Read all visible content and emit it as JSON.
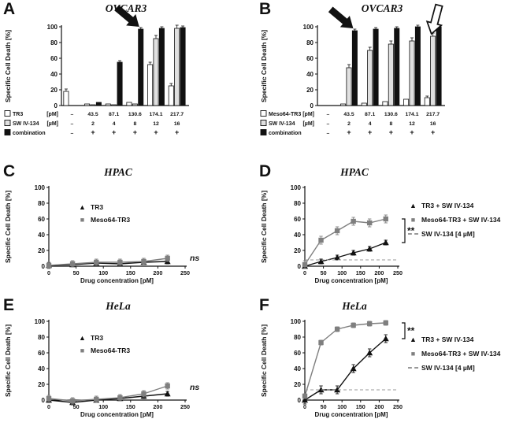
{
  "panels": [
    {
      "letter": "A",
      "title": "OVCAR3"
    },
    {
      "letter": "B",
      "title": "OVCAR3"
    },
    {
      "letter": "C",
      "title": "HPAC"
    },
    {
      "letter": "D",
      "title": "HPAC"
    },
    {
      "letter": "E",
      "title": "HeLa"
    },
    {
      "letter": "F",
      "title": "HeLa"
    }
  ],
  "colors": {
    "black": "#111111",
    "gray_series": "#7f7f7f",
    "light_bar": "#e0e0e0",
    "dashed_line": "#999999"
  },
  "chart_data": [
    {
      "panel": "A",
      "type": "bar",
      "title": "OVCAR3",
      "ylabel": "Specific Cell Death [%]",
      "ylim": [
        0,
        100
      ],
      "yticks": [
        0,
        20,
        40,
        60,
        80,
        100
      ],
      "dose_rows": [
        {
          "name": "TR3",
          "unit": "[pM]",
          "swatch": "#ffffff",
          "values": [
            "–",
            "43.5",
            "87.1",
            "130.6",
            "174.1",
            "217.7"
          ]
        },
        {
          "name": "SW IV-134",
          "unit": "[µM]",
          "swatch": "#e0e0e0",
          "values": [
            "–",
            "2",
            "4",
            "8",
            "12",
            "16"
          ]
        },
        {
          "name": "combination",
          "unit": "",
          "swatch": "#111111",
          "values": [
            "–",
            "+",
            "+",
            "+",
            "+",
            "+"
          ]
        }
      ],
      "series": [
        {
          "name": "TR3",
          "fill": "#ffffff",
          "values": [
            18,
            2,
            2,
            4,
            52,
            25
          ],
          "error": 3
        },
        {
          "name": "SW IV-134",
          "fill": "#e0e0e0",
          "values": [
            0,
            1,
            1,
            2,
            85,
            98
          ],
          "error": 4
        },
        {
          "name": "combination",
          "fill": "#111111",
          "values": [
            0,
            4,
            55,
            97,
            98,
            99
          ],
          "error": 2
        }
      ],
      "annotations": [
        {
          "type": "arrow",
          "fill": "black",
          "group": 3,
          "series": 2,
          "angle": 40
        }
      ]
    },
    {
      "panel": "B",
      "type": "bar",
      "title": "OVCAR3",
      "ylabel": "Specific Cell Death [%]",
      "ylim": [
        0,
        100
      ],
      "yticks": [
        0,
        20,
        40,
        60,
        80,
        100
      ],
      "dose_rows": [
        {
          "name": "Meso64-TR3",
          "unit": "[pM]",
          "swatch": "#ffffff",
          "values": [
            "–",
            "43.5",
            "87.1",
            "130.6",
            "174.1",
            "217.7"
          ]
        },
        {
          "name": "SW IV-134",
          "unit": "[µM]",
          "swatch": "#e0e0e0",
          "values": [
            "–",
            "2",
            "4",
            "8",
            "12",
            "16"
          ]
        },
        {
          "name": "combination",
          "unit": "",
          "swatch": "#111111",
          "values": [
            "–",
            "+",
            "+",
            "+",
            "+",
            "+"
          ]
        }
      ],
      "series": [
        {
          "name": "Meso64-TR3",
          "fill": "#ffffff",
          "values": [
            0,
            2,
            3,
            5,
            8,
            10
          ],
          "error": 2
        },
        {
          "name": "SW IV-134",
          "fill": "#e0e0e0",
          "values": [
            0,
            48,
            70,
            78,
            82,
            88
          ],
          "error": 4
        },
        {
          "name": "combination",
          "fill": "#111111",
          "values": [
            0,
            95,
            97,
            98,
            100,
            100
          ],
          "error": 2
        }
      ],
      "annotations": [
        {
          "type": "arrow",
          "fill": "black",
          "group": 1,
          "series": 2,
          "angle": 40
        },
        {
          "type": "arrow",
          "fill": "white",
          "group": 5,
          "series": 1,
          "angle": 105
        }
      ]
    },
    {
      "panel": "C",
      "type": "line",
      "title": "HPAC",
      "ylabel": "Specific Cell Death [%]",
      "xlabel": "Drug concentration [pM]",
      "ylim": [
        0,
        100
      ],
      "yticks": [
        0,
        20,
        40,
        60,
        80,
        100
      ],
      "xlim": [
        0,
        250
      ],
      "xticks": [
        0,
        50,
        100,
        150,
        200,
        250
      ],
      "x": [
        0,
        43.5,
        87.1,
        130.6,
        174.1,
        217.7
      ],
      "series": [
        {
          "name": "TR3",
          "marker": "triangle",
          "color": "#111111",
          "values": [
            1,
            2,
            4,
            3,
            5,
            6
          ],
          "error": 3
        },
        {
          "name": "Meso64-TR3",
          "marker": "square",
          "color": "#7f7f7f",
          "values": [
            1,
            3,
            5,
            5,
            6,
            10
          ],
          "error": 4
        }
      ],
      "annotations": [
        {
          "type": "text",
          "label": "ns",
          "y": 10
        }
      ],
      "legend": {
        "position": "inside",
        "items": [
          {
            "label": "TR3",
            "marker": "triangle",
            "color": "#111111"
          },
          {
            "label": "Meso64-TR3",
            "marker": "square",
            "color": "#7f7f7f"
          }
        ]
      }
    },
    {
      "panel": "D",
      "type": "line",
      "title": "HPAC",
      "ylabel": "Specific Cell Death [%]",
      "xlabel": "Drug concentration [pM]",
      "ylim": [
        0,
        100
      ],
      "yticks": [
        0,
        20,
        40,
        60,
        80,
        100
      ],
      "xlim": [
        0,
        250
      ],
      "xticks": [
        0,
        50,
        100,
        150,
        200,
        250
      ],
      "x": [
        0,
        43.5,
        87.1,
        130.6,
        174.1,
        217.7
      ],
      "series": [
        {
          "name": "TR3 + SW IV-134",
          "marker": "triangle",
          "color": "#111111",
          "values": [
            0,
            6,
            11,
            17,
            22,
            30
          ],
          "error": 3
        },
        {
          "name": "Meso64-TR3 + SW IV-134",
          "marker": "square",
          "color": "#7f7f7f",
          "values": [
            2,
            33,
            45,
            57,
            55,
            60
          ],
          "error": 5
        },
        {
          "name": "SW IV-134 [4 µM]",
          "style": "dashed_flat",
          "color": "#999999",
          "value": 8
        }
      ],
      "annotations": [
        {
          "type": "sig",
          "label": "**"
        }
      ],
      "legend": {
        "position": "right",
        "items": [
          {
            "label": "TR3 + SW IV-134",
            "marker": "triangle",
            "color": "#111111"
          },
          {
            "label": "Meso64-TR3 + SW IV-134",
            "marker": "square",
            "color": "#7f7f7f"
          },
          {
            "label": "SW IV-134 [4 µM]",
            "marker": "dash",
            "color": "#999999"
          }
        ]
      }
    },
    {
      "panel": "E",
      "type": "line",
      "title": "HeLa",
      "ylabel": "Specific Cell Death [%]",
      "xlabel": "Drug concentration [pM]",
      "ylim": [
        0,
        100
      ],
      "yticks": [
        0,
        20,
        40,
        60,
        80,
        100
      ],
      "xlim": [
        0,
        250
      ],
      "xticks": [
        0,
        50,
        100,
        150,
        200,
        250
      ],
      "x": [
        0,
        43.5,
        87.1,
        130.6,
        174.1,
        217.7
      ],
      "series": [
        {
          "name": "TR3",
          "marker": "triangle",
          "color": "#111111",
          "values": [
            0,
            -3,
            0,
            2,
            5,
            8
          ],
          "error": 3
        },
        {
          "name": "Meso64-TR3",
          "marker": "square",
          "color": "#7f7f7f",
          "values": [
            2,
            -1,
            1,
            3,
            8,
            18
          ],
          "error": 4
        }
      ],
      "annotations": [
        {
          "type": "text",
          "label": "ns",
          "y": 16
        }
      ],
      "legend": {
        "position": "inside",
        "items": [
          {
            "label": "TR3",
            "marker": "triangle",
            "color": "#111111"
          },
          {
            "label": "Meso64-TR3",
            "marker": "square",
            "color": "#7f7f7f"
          }
        ]
      }
    },
    {
      "panel": "F",
      "type": "line",
      "title": "HeLa",
      "ylabel": "Specific Cell Death [%]",
      "xlabel": "Drug concentration [pM]",
      "ylim": [
        0,
        100
      ],
      "yticks": [
        0,
        20,
        40,
        60,
        80,
        100
      ],
      "xlim": [
        0,
        250
      ],
      "xticks": [
        0,
        50,
        100,
        150,
        200,
        250
      ],
      "x": [
        0,
        43.5,
        87.1,
        130.6,
        174.1,
        217.7
      ],
      "series": [
        {
          "name": "TR3 + SW IV-134",
          "marker": "triangle",
          "color": "#111111",
          "values": [
            0,
            13,
            13,
            40,
            60,
            78
          ],
          "error": 5
        },
        {
          "name": "Meso64-TR3 + SW IV-134",
          "marker": "square",
          "color": "#7f7f7f",
          "values": [
            5,
            73,
            90,
            95,
            97,
            98
          ],
          "error": 3
        },
        {
          "name": "SW IV-134 [4 µM]",
          "style": "dashed_flat",
          "color": "#999999",
          "value": 13
        }
      ],
      "annotations": [
        {
          "type": "sig",
          "label": "**"
        }
      ],
      "legend": {
        "position": "right",
        "items": [
          {
            "label": "TR3 + SW IV-134",
            "marker": "triangle",
            "color": "#111111"
          },
          {
            "label": "Meso64-TR3 + SW IV-134",
            "marker": "square",
            "color": "#7f7f7f"
          },
          {
            "label": "SW IV-134 [4 µM]",
            "marker": "dash",
            "color": "#999999"
          }
        ]
      }
    }
  ]
}
